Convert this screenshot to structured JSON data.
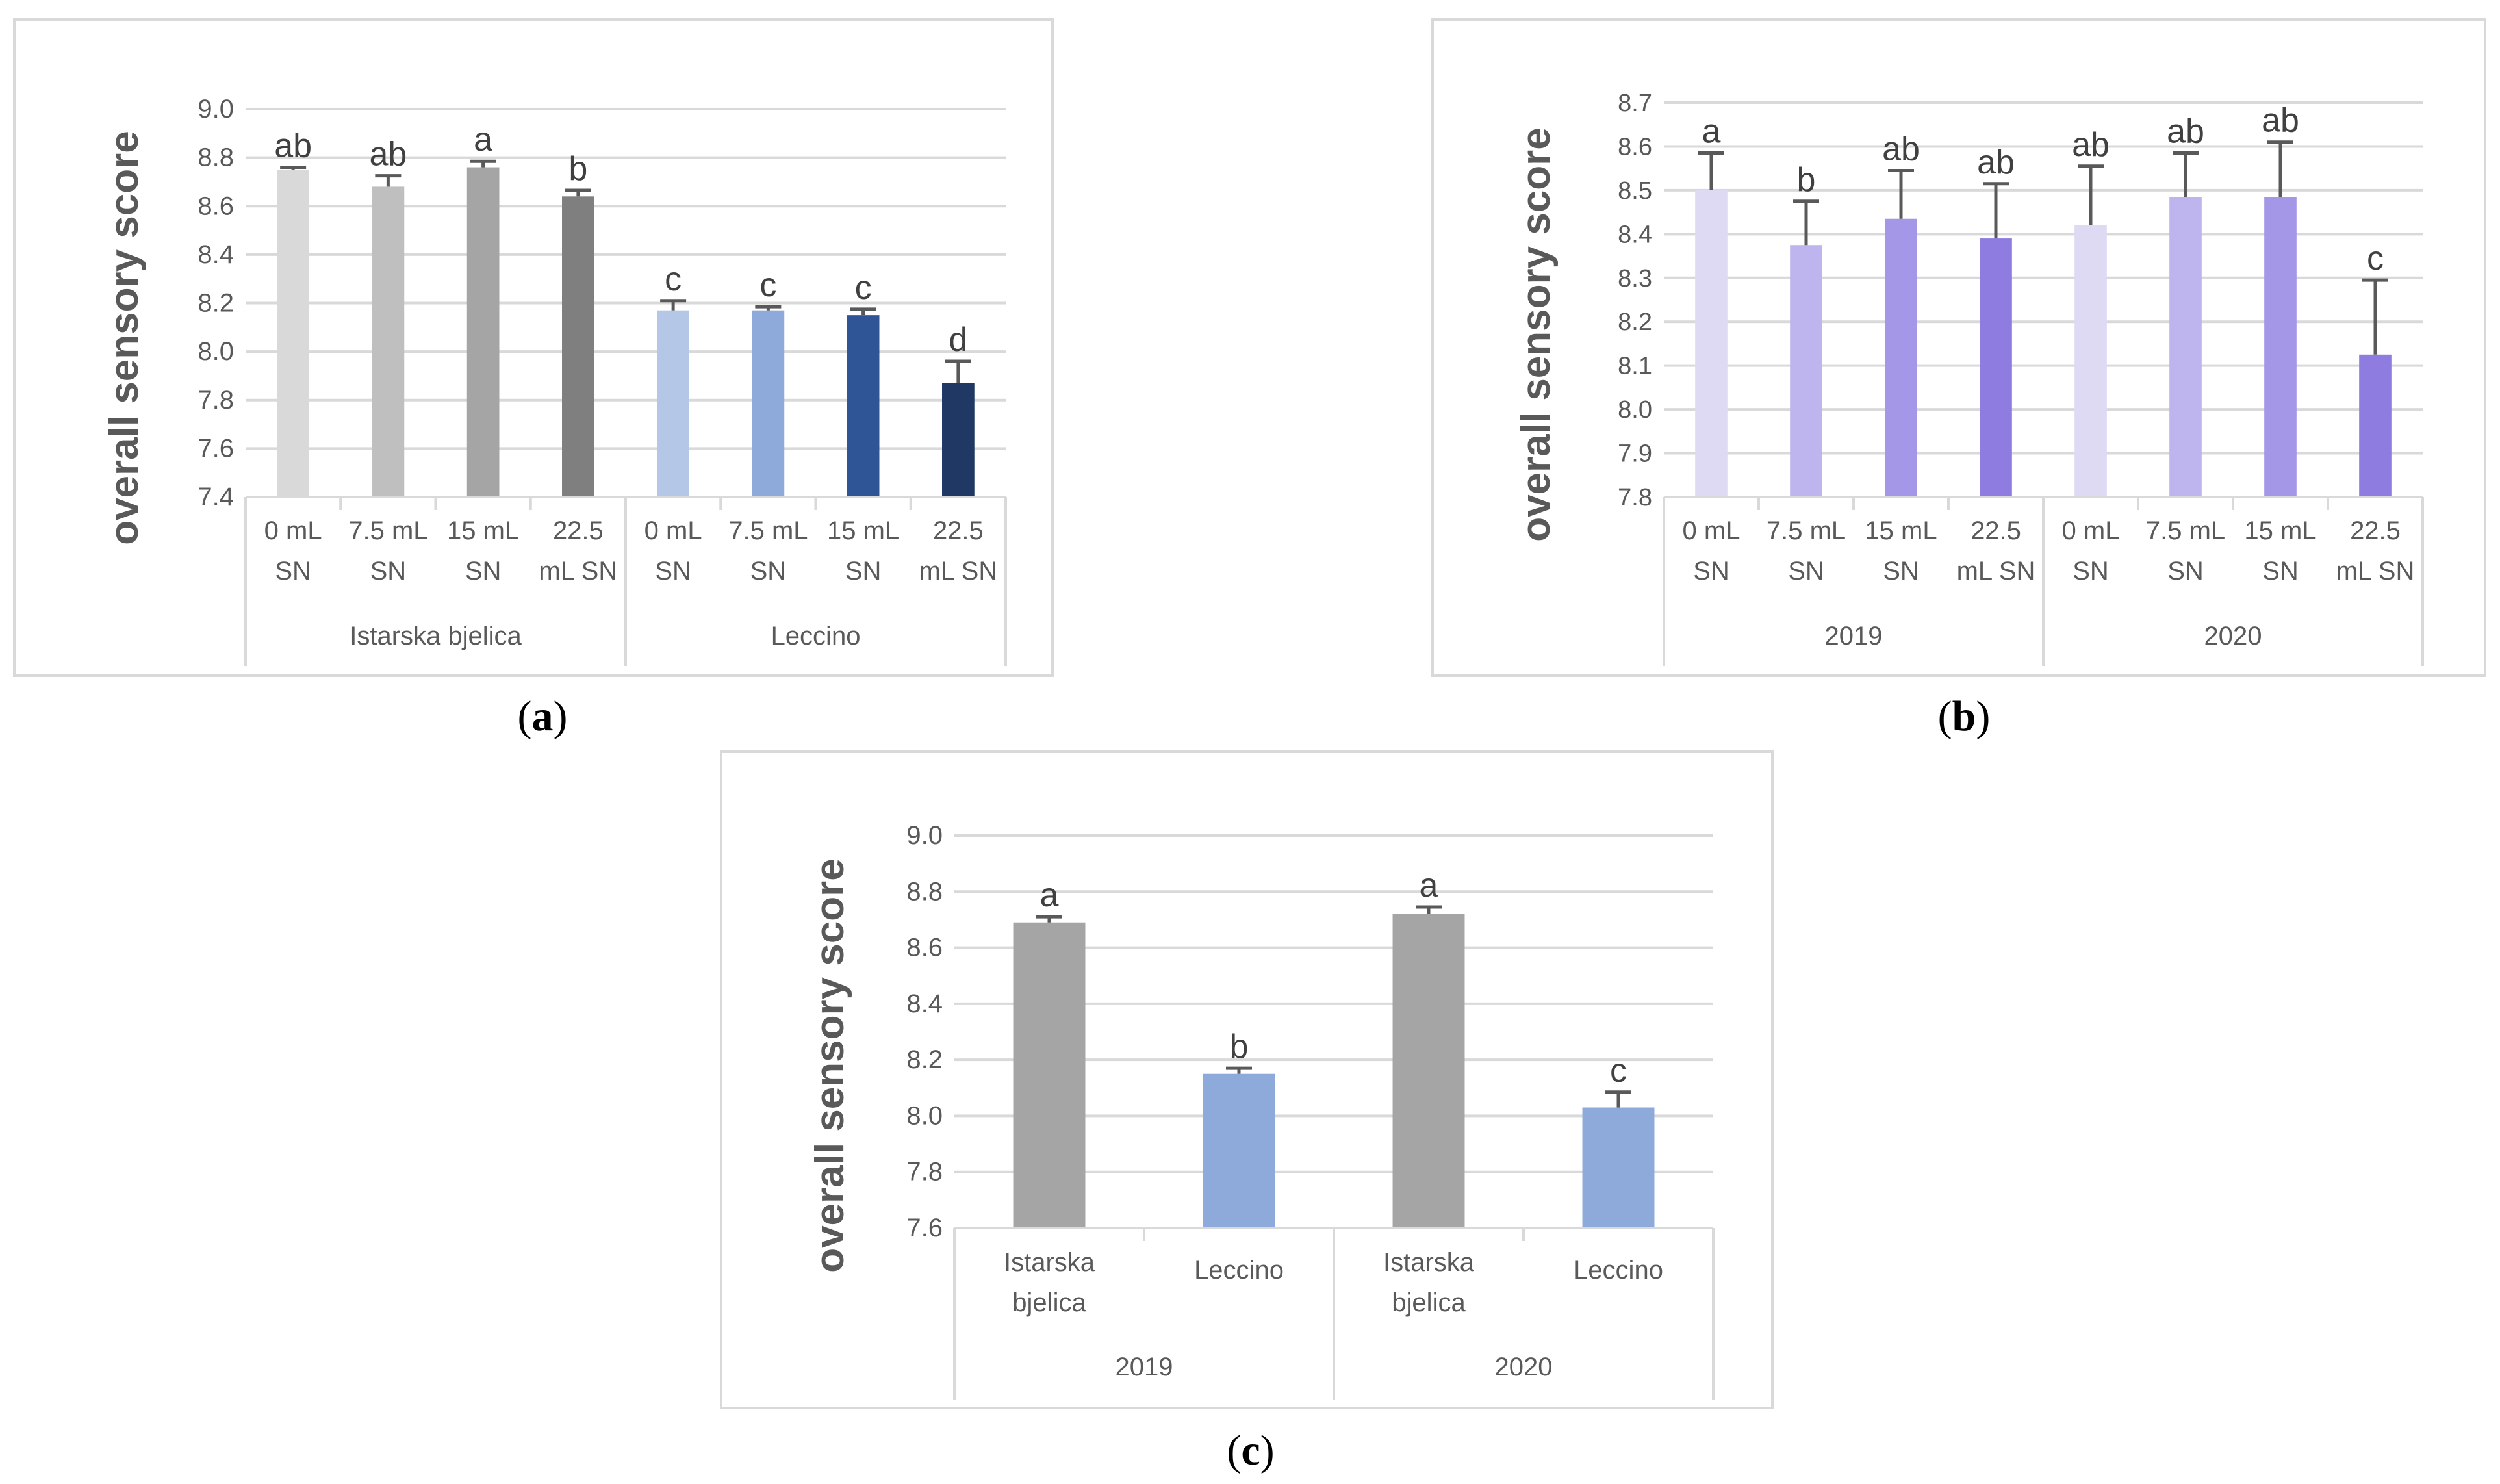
{
  "chart_data": [
    {
      "id": "a",
      "type": "bar",
      "ylabel": "overall sensory score",
      "ylim": [
        7.4,
        9.0
      ],
      "yticks": [
        "7.4",
        "7.6",
        "7.8",
        "8.0",
        "8.2",
        "8.4",
        "8.6",
        "8.8",
        "9.0"
      ],
      "grid": true,
      "groups": [
        {
          "label": "Istarska bjelica",
          "categories": [
            [
              "0 mL",
              "SN"
            ],
            [
              "7.5 mL",
              "SN"
            ],
            [
              "15 mL",
              "SN"
            ],
            [
              "22.5",
              "mL SN"
            ]
          ]
        },
        {
          "label": "Leccino",
          "categories": [
            [
              "0 mL",
              "SN"
            ],
            [
              "7.5 mL",
              "SN"
            ],
            [
              "15 mL",
              "SN"
            ],
            [
              "22.5",
              "mL SN"
            ]
          ]
        }
      ],
      "values": [
        8.75,
        8.68,
        8.76,
        8.64,
        8.17,
        8.17,
        8.15,
        7.87
      ],
      "errors": [
        0.01,
        0.045,
        0.025,
        0.025,
        0.04,
        0.015,
        0.025,
        0.09
      ],
      "letters": [
        "ab",
        "ab",
        "a",
        "b",
        "c",
        "c",
        "c",
        "d"
      ],
      "colors": [
        "#d9d9d9",
        "#bfbfbf",
        "#a5a5a5",
        "#7f7f7f",
        "#b4c7e7",
        "#8eaadb",
        "#2f5597",
        "#1f3864"
      ]
    },
    {
      "id": "b",
      "type": "bar",
      "ylabel": "overall sensory score",
      "ylim": [
        7.8,
        8.7
      ],
      "yticks": [
        "7.8",
        "7.9",
        "8.0",
        "8.1",
        "8.2",
        "8.3",
        "8.4",
        "8.5",
        "8.6",
        "8.7"
      ],
      "grid": true,
      "groups": [
        {
          "label": "2019",
          "categories": [
            [
              "0 mL",
              "SN"
            ],
            [
              "7.5 mL",
              "SN"
            ],
            [
              "15 mL",
              "SN"
            ],
            [
              "22.5",
              "mL SN"
            ]
          ]
        },
        {
          "label": "2020",
          "categories": [
            [
              "0 mL",
              "SN"
            ],
            [
              "7.5 mL",
              "SN"
            ],
            [
              "15 mL",
              "SN"
            ],
            [
              "22.5",
              "mL SN"
            ]
          ]
        }
      ],
      "values": [
        8.5,
        8.375,
        8.435,
        8.39,
        8.42,
        8.485,
        8.485,
        8.125
      ],
      "errors": [
        0.085,
        0.1,
        0.11,
        0.125,
        0.135,
        0.1,
        0.125,
        0.17
      ],
      "letters": [
        "a",
        "b",
        "ab",
        "ab",
        "ab",
        "ab",
        "ab",
        "c"
      ],
      "colors": [
        "#dedaf4",
        "#beb5ee",
        "#a597e8",
        "#8f7ce0",
        "#dedaf4",
        "#beb5ee",
        "#a597e8",
        "#8f7ce0"
      ]
    },
    {
      "id": "c",
      "type": "bar",
      "ylabel": "overall sensory score",
      "ylim": [
        7.6,
        9.0
      ],
      "yticks": [
        "7.6",
        "7.8",
        "8.0",
        "8.2",
        "8.4",
        "8.6",
        "8.8",
        "9.0"
      ],
      "grid": true,
      "groups": [
        {
          "label": "2019",
          "categories": [
            [
              "Istarska",
              "bjelica"
            ],
            [
              "Leccino"
            ]
          ]
        },
        {
          "label": "2020",
          "categories": [
            [
              "Istarska",
              "bjelica"
            ],
            [
              "Leccino"
            ]
          ]
        }
      ],
      "values": [
        8.69,
        8.15,
        8.72,
        8.03
      ],
      "errors": [
        0.02,
        0.02,
        0.025,
        0.055
      ],
      "letters": [
        "a",
        "b",
        "a",
        "c"
      ],
      "colors": [
        "#a5a5a5",
        "#8eaadb",
        "#a5a5a5",
        "#8eaadb"
      ]
    }
  ],
  "panel_labels": [
    {
      "open": "(",
      "letter": "a",
      "close": ")"
    },
    {
      "open": "(",
      "letter": "b",
      "close": ")"
    },
    {
      "open": "(",
      "letter": "c",
      "close": ")"
    }
  ]
}
